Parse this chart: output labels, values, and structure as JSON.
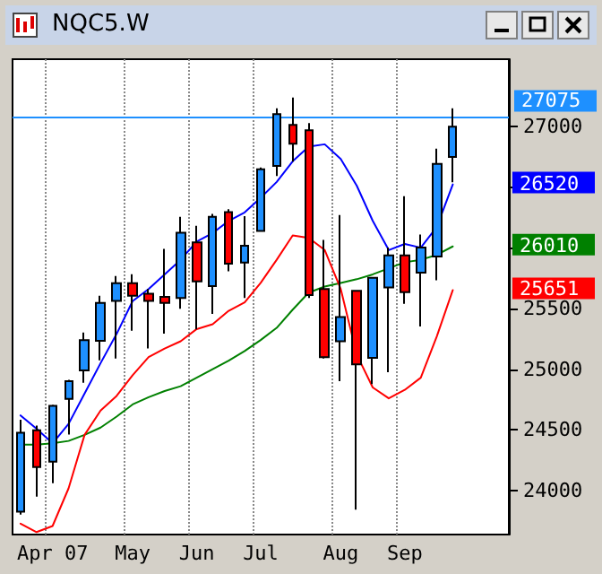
{
  "chart_data": {
    "type": "candlestick",
    "title": "NQC5.W",
    "categories": [
      null,
      null,
      "Apr 07",
      null,
      null,
      null,
      null,
      "May",
      null,
      null,
      null,
      "Jun",
      null,
      null,
      null,
      "Jul",
      null,
      null,
      null,
      null,
      "Aug",
      null,
      null,
      null,
      "Sep",
      null,
      null,
      null,
      null,
      null,
      null
    ],
    "series": [
      {
        "ohlc": [
          [
            23829,
            24585,
            23805,
            24478
          ],
          [
            24498,
            24537,
            23951,
            24195
          ],
          [
            24239,
            24707,
            24063,
            24698
          ],
          [
            24756,
            24912,
            24463,
            24902
          ],
          [
            24990,
            25302,
            24888,
            25239
          ],
          [
            25234,
            25605,
            25073,
            25546
          ],
          [
            25561,
            25766,
            25088,
            25707
          ],
          [
            25707,
            25781,
            25317,
            25605
          ],
          [
            25620,
            25659,
            25171,
            25561
          ],
          [
            25595,
            25990,
            25293,
            25546
          ],
          [
            25585,
            26254,
            25498,
            26122
          ],
          [
            26044,
            26180,
            25327,
            25722
          ],
          [
            25683,
            26278,
            25454,
            26254
          ],
          [
            26293,
            26317,
            25805,
            25868
          ],
          [
            25878,
            26259,
            25585,
            26015
          ],
          [
            26137,
            26659,
            26132,
            26644
          ],
          [
            26673,
            27146,
            26590,
            27098
          ],
          [
            27010,
            27234,
            26707,
            26854
          ],
          [
            26966,
            27024,
            25585,
            25610
          ],
          [
            25659,
            26063,
            25088,
            25098
          ],
          [
            25229,
            26268,
            24902,
            25429
          ],
          [
            25644,
            25650,
            23844,
            25039
          ],
          [
            25093,
            25756,
            24878,
            25751
          ],
          [
            25673,
            26000,
            24976,
            25937
          ],
          [
            25937,
            26424,
            25537,
            25634
          ],
          [
            25795,
            26107,
            25351,
            26000
          ],
          [
            25927,
            26815,
            25732,
            26688
          ],
          [
            26746,
            27146,
            26537,
            26995
          ],
          null,
          null,
          null
        ],
        "colors": [
          "#1e90ff",
          "#ff0000",
          "#1e90ff",
          "#1e90ff",
          "#1e90ff",
          "#1e90ff",
          "#1e90ff",
          "#ff0000",
          "#ff0000",
          "#ff0000",
          "#1e90ff",
          "#ff0000",
          "#1e90ff",
          "#ff0000",
          "#1e90ff",
          "#1e90ff",
          "#1e90ff",
          "#ff0000",
          "#ff0000",
          "#ff0000",
          "#1e90ff",
          "#ff0000",
          "#1e90ff",
          "#1e90ff",
          "#ff0000",
          "#1e90ff",
          "#1e90ff",
          "#1e90ff",
          null,
          null,
          null
        ]
      },
      {
        "type": "line",
        "color": "#0000ff",
        "values": [
          24620,
          24510,
          24390,
          24550,
          24800,
          25050,
          25290,
          25560,
          25660,
          25780,
          25900,
          26050,
          26120,
          26220,
          26290,
          26410,
          26540,
          26710,
          26830,
          26850,
          26730,
          26510,
          26220,
          25980,
          26030,
          26000,
          26170,
          26520,
          null,
          null,
          null
        ],
        "value_labels": [
          null,
          null,
          null,
          null,
          null,
          null,
          null,
          null,
          null,
          null,
          null,
          null,
          null,
          null,
          null,
          null,
          null,
          null,
          null,
          null,
          null,
          null,
          null,
          null,
          null,
          null,
          null,
          null,
          null,
          null,
          null
        ]
      },
      {
        "type": "line",
        "color": "#008000",
        "values": [
          24380,
          24380,
          24390,
          24410,
          24460,
          24520,
          24610,
          24710,
          24770,
          24820,
          24860,
          24930,
          25000,
          25070,
          25150,
          25240,
          25340,
          25490,
          25630,
          25680,
          25710,
          25740,
          25780,
          25830,
          25880,
          25900,
          25940,
          26010,
          null,
          null,
          null
        ],
        "value_labels": [
          null,
          null,
          null,
          null,
          null,
          null,
          null,
          null,
          null,
          null,
          null,
          null,
          null,
          null,
          null,
          null,
          null,
          null,
          null,
          null,
          null,
          null,
          null,
          null,
          null,
          null,
          null,
          null,
          null,
          null,
          null
        ]
      },
      {
        "type": "line",
        "color": "#ff0000",
        "values": [
          23730,
          23660,
          23710,
          24020,
          24460,
          24660,
          24780,
          24950,
          25100,
          25170,
          25230,
          25330,
          25370,
          25480,
          25550,
          25710,
          25900,
          26100,
          26080,
          25980,
          25660,
          25120,
          24850,
          24760,
          24830,
          24930,
          25270,
          25651,
          null,
          null,
          null
        ],
        "value_labels": [
          null,
          null,
          null,
          null,
          null,
          null,
          null,
          null,
          null,
          null,
          null,
          null,
          null,
          null,
          null,
          null,
          null,
          null,
          null,
          null,
          null,
          null,
          null,
          null,
          null,
          null,
          null,
          null,
          null,
          null,
          null
        ]
      }
    ],
    "ylim": [
      23640,
      27550
    ],
    "yticks": [
      24000,
      24500,
      25000,
      25500,
      {
        "value": 26000,
        "label": null
      },
      {
        "value": 26500,
        "label": null
      },
      27000
    ],
    "ref_lines": [
      {
        "axis": "y",
        "value": 27075,
        "label": "27075",
        "color": "#1e90ff"
      }
    ],
    "annotations": [
      "26520",
      "26010",
      "25651"
    ],
    "grid": "x",
    "marker": "none",
    "line_style": "solid"
  }
}
